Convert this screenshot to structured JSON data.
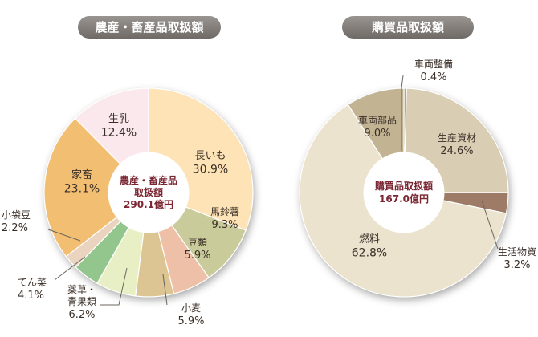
{
  "chart_data": [
    {
      "type": "pie",
      "title": "農産・畜産品取扱額",
      "center_label": [
        "農産・畜産品",
        "取扱額",
        "290.1億円"
      ],
      "unit": "%",
      "slices": [
        {
          "name": "長いも",
          "value": 30.9,
          "display": "30.9%",
          "color": "#fde3b5"
        },
        {
          "name": "馬鈴薯",
          "value": 9.3,
          "display": "9.3%",
          "color": "#c9cc9a"
        },
        {
          "name": "豆類",
          "value": 5.9,
          "display": "5.9%",
          "color": "#eec0a7"
        },
        {
          "name": "小麦",
          "value": 5.9,
          "display": "5.9%",
          "color": "#dcc593"
        },
        {
          "name": "薬草・青果類",
          "label_lines": [
            "薬草・",
            "青果類"
          ],
          "value": 6.2,
          "display": "6.2%",
          "color": "#e9efc4"
        },
        {
          "name": "てん菜",
          "value": 4.1,
          "display": "4.1%",
          "color": "#93c68d"
        },
        {
          "name": "小袋豆",
          "value": 2.2,
          "display": "2.2%",
          "color": "#ead3bf"
        },
        {
          "name": "家畜",
          "value": 23.1,
          "display": "23.1%",
          "color": "#f2bf72"
        },
        {
          "name": "生乳",
          "value": 12.4,
          "display": "12.4%",
          "color": "#fbe8ed"
        }
      ]
    },
    {
      "type": "pie",
      "title": "購買品取扱額",
      "center_label": [
        "購買品取扱額",
        "167.0億円"
      ],
      "unit": "%",
      "slices": [
        {
          "name": "車両整備",
          "value": 0.4,
          "display": "0.4%",
          "color": "#b3a68f"
        },
        {
          "name": "生産資材",
          "value": 24.6,
          "display": "24.6%",
          "color": "#d9cdb3"
        },
        {
          "name": "生活物資",
          "value": 3.2,
          "display": "3.2%",
          "color": "#9e7b66"
        },
        {
          "name": "燃料",
          "value": 62.8,
          "display": "62.8%",
          "color": "#ece3cf"
        },
        {
          "name": "車両部品",
          "value": 9.0,
          "display": "9.0%",
          "color": "#c2b392"
        }
      ]
    }
  ]
}
